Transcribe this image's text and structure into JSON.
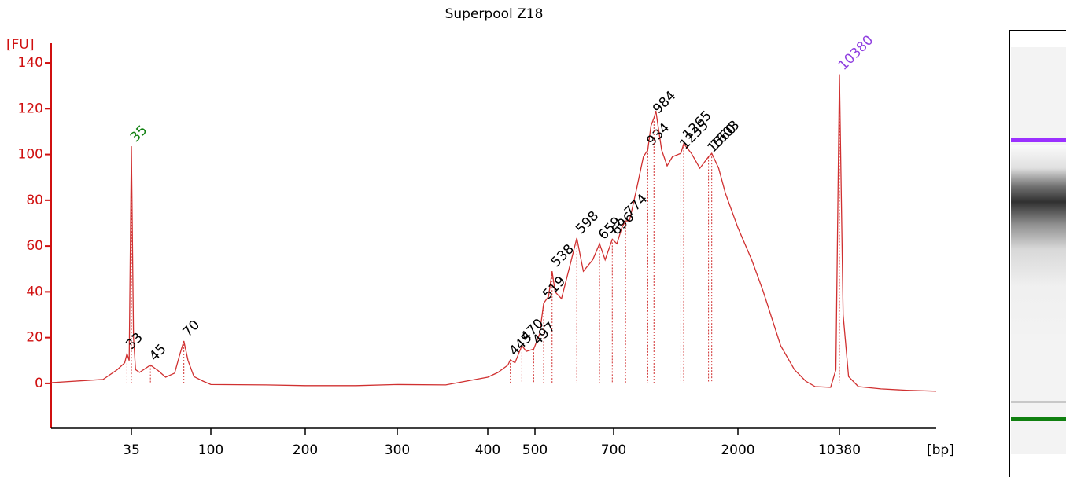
{
  "chart_data": {
    "type": "line",
    "title": "Superpool Z18",
    "y_label": "[FU]",
    "x_label": "[bp]",
    "xscale": "log",
    "xlim": [
      12,
      48000
    ],
    "xticks": [
      35,
      100,
      200,
      300,
      400,
      500,
      700,
      2000,
      10380
    ],
    "ylim": [
      -19.6,
      148.6
    ],
    "yticks": [
      0,
      20,
      40,
      60,
      80,
      100,
      120,
      140
    ],
    "axis_color": "#d01010",
    "series": [
      {
        "color": "#d03030",
        "x": [
          12,
          24,
          29,
          32,
          33,
          34,
          35,
          36,
          37,
          39,
          45,
          50,
          55,
          62,
          66,
          70,
          74,
          80,
          90,
          100,
          150,
          200,
          250,
          300,
          350,
          400,
          420,
          440,
          445,
          455,
          470,
          480,
          497,
          510,
          519,
          530,
          538,
          545,
          560,
          580,
          598,
          615,
          640,
          659,
          675,
          696,
          720,
          750,
          774,
          800,
          850,
          900,
          934,
          960,
          984,
          1000,
          1050,
          1100,
          1150,
          1235,
          1265,
          1350,
          1450,
          1560,
          1603,
          1700,
          1800,
          2000,
          2500,
          3000,
          4000,
          5000,
          6000,
          7000,
          9000,
          9800,
          10380,
          11000,
          12000,
          14000,
          20000,
          30000,
          48000
        ],
        "values": [
          0.3,
          1.7,
          6,
          9,
          13,
          10,
          103.6,
          20,
          6,
          4.8,
          8,
          5.5,
          2.7,
          4.5,
          12,
          18.5,
          10,
          3,
          1,
          -0.5,
          -0.7,
          -1,
          -1,
          -0.5,
          -0.7,
          2.7,
          4.8,
          8,
          10.3,
          9,
          16.5,
          14,
          15,
          21.6,
          35,
          38,
          49,
          40,
          37,
          51,
          63.5,
          49,
          54,
          61,
          54,
          63,
          61,
          68,
          71,
          71,
          85,
          99,
          102,
          112.6,
          116,
          119,
          102,
          95,
          99,
          100.5,
          104.7,
          100.5,
          94,
          99,
          100.5,
          94,
          83,
          68,
          54,
          40.5,
          16.5,
          6,
          1,
          -1.4,
          -1.7,
          6,
          135,
          30,
          3,
          -1.4,
          -2.4,
          -3,
          -3.4
        ]
      }
    ],
    "peaks": [
      {
        "bp": 33,
        "fu": 13
      },
      {
        "bp": 35,
        "fu": 103.6,
        "color": "#108010"
      },
      {
        "bp": 45,
        "fu": 8
      },
      {
        "bp": 70,
        "fu": 18.5
      },
      {
        "bp": 445,
        "fu": 10.3
      },
      {
        "bp": 470,
        "fu": 16.5
      },
      {
        "bp": 497,
        "fu": 15
      },
      {
        "bp": 519,
        "fu": 35
      },
      {
        "bp": 538,
        "fu": 49
      },
      {
        "bp": 598,
        "fu": 63.5
      },
      {
        "bp": 659,
        "fu": 61
      },
      {
        "bp": 696,
        "fu": 63
      },
      {
        "bp": 774,
        "fu": 71
      },
      {
        "bp": 934,
        "fu": 102
      },
      {
        "bp": 984,
        "fu": 116
      },
      {
        "bp": 1235,
        "fu": 100.5
      },
      {
        "bp": 1265,
        "fu": 104.7
      },
      {
        "bp": 1560,
        "fu": 99
      },
      {
        "bp": 1603,
        "fu": 100.5
      },
      {
        "bp": 10380,
        "fu": 135,
        "color": "#9040e0"
      }
    ]
  }
}
